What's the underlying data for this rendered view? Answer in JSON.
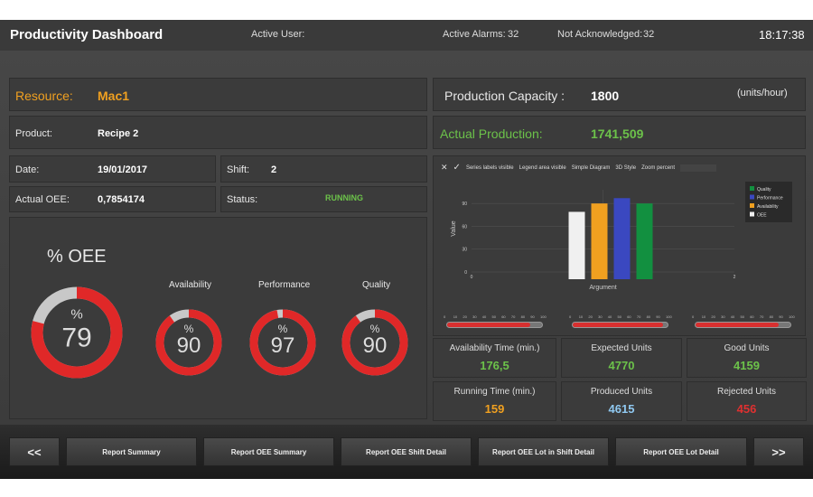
{
  "header": {
    "title": "Productivity Dashboard",
    "active_user_label": "Active User:",
    "active_alarms_label": "Active Alarms:",
    "active_alarms": "32",
    "not_ack_label": "Not Acknowledged:",
    "not_ack": "32",
    "time": "18:17:38"
  },
  "info": {
    "resource_label": "Resource:",
    "resource": "Mac1",
    "product_label": "Product:",
    "product": "Recipe 2",
    "date_label": "Date:",
    "date": "19/01/2017",
    "shift_label": "Shift:",
    "shift": "2",
    "oee_label": "Actual OEE:",
    "oee": "0,7854174",
    "status_label": "Status:",
    "status": "RUNNING"
  },
  "production": {
    "capacity_label": "Production Capacity :",
    "capacity": "1800",
    "unit": "(units/hour)",
    "actual_label": "Actual Production:",
    "actual": "1741,509"
  },
  "gauges": {
    "title": "% OEE",
    "unit": "%",
    "items": [
      {
        "label": "",
        "value": 79
      },
      {
        "label": "Availability",
        "value": 90
      },
      {
        "label": "Performance",
        "value": 97
      },
      {
        "label": "Quality",
        "value": 90
      }
    ]
  },
  "toolbar": {
    "items": [
      "Series labels visible",
      "Legend area visible",
      "Simple Diagram",
      "3D Style",
      "Zoom percent"
    ]
  },
  "chart_data": {
    "type": "bar",
    "xlabel": "Argument",
    "ylabel": "Value",
    "ylim": [
      0,
      100
    ],
    "xlim": [
      0,
      2
    ],
    "yticks": [
      0,
      30,
      60,
      90
    ],
    "xticks": [
      "0",
      "1",
      "2"
    ],
    "legend": "top-right",
    "series": [
      {
        "name": "OEE",
        "x": 1,
        "value": 79,
        "color": "#f0f0f0"
      },
      {
        "name": "Availability",
        "x": 1,
        "value": 90,
        "color": "#f0a020"
      },
      {
        "name": "Performance",
        "x": 1,
        "value": 97,
        "color": "#3a48c0"
      },
      {
        "name": "Quality",
        "x": 1,
        "value": 90,
        "color": "#129040"
      }
    ],
    "legend_order": [
      "Quality",
      "Performance",
      "Availability",
      "OEE"
    ]
  },
  "sliders": {
    "ticks": [
      "0",
      "10",
      "20",
      "30",
      "40",
      "50",
      "60",
      "70",
      "80",
      "90",
      "100"
    ],
    "values": [
      88,
      95,
      88
    ]
  },
  "stats": [
    {
      "label": "Availability Time (min.)",
      "value": "176,5",
      "color": "#6cc24a"
    },
    {
      "label": "Expected Units",
      "value": "4770",
      "color": "#6cc24a"
    },
    {
      "label": "Good Units",
      "value": "4159",
      "color": "#6cc24a"
    },
    {
      "label": "Running Time (min.)",
      "value": "159",
      "color": "#f0a020"
    },
    {
      "label": "Produced Units",
      "value": "4615",
      "color": "#8fc8f0"
    },
    {
      "label": "Rejected Units",
      "value": "456",
      "color": "#e03030"
    }
  ],
  "footer": {
    "prev": "<<",
    "next": ">>",
    "buttons": [
      "Report Summary",
      "Report OEE Summary",
      "Report OEE Shift Detail",
      "Report OEE Lot in Shift Detail",
      "Report OEE Lot Detail"
    ]
  }
}
